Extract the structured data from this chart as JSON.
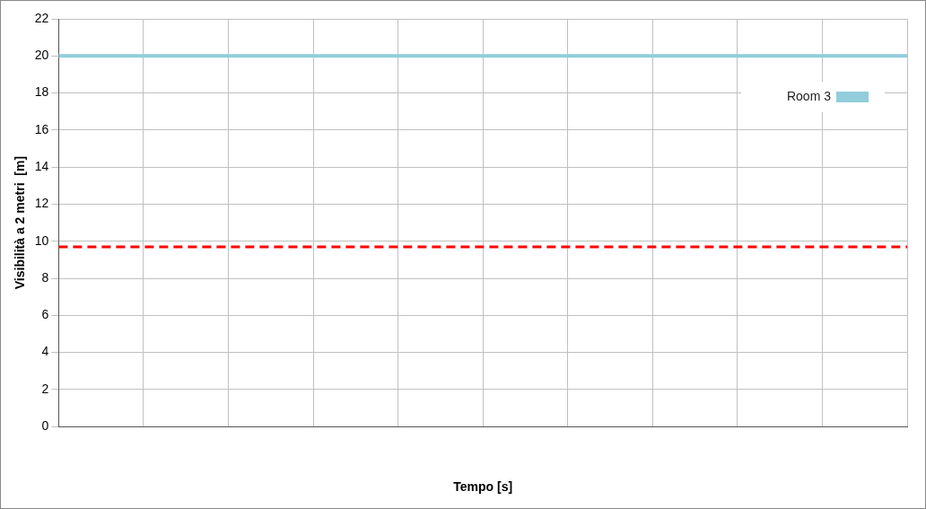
{
  "chart_data": {
    "type": "line",
    "xlabel": "Tempo [s]",
    "ylabel": "Visibilità a 2 metri  [m]",
    "categories": [
      null,
      null,
      null,
      null,
      null,
      null,
      null,
      null,
      null,
      null,
      null
    ],
    "series": [
      {
        "name": "Room 3",
        "color": "#92cddc",
        "values": [
          20,
          20,
          20,
          20,
          20,
          20,
          20,
          20,
          20,
          20,
          20
        ]
      }
    ],
    "ylim": [
      0,
      22
    ],
    "yticks": [
      0,
      2,
      4,
      6,
      8,
      10,
      12,
      14,
      16,
      18,
      20,
      22
    ],
    "ref_lines": [
      {
        "axis": "y",
        "value": 9.7,
        "color": "#ff0000",
        "line_style": "dashed"
      }
    ],
    "grid": true,
    "legend": "top right",
    "marker": "none",
    "line_style": "solid",
    "tick_labels": "y"
  }
}
